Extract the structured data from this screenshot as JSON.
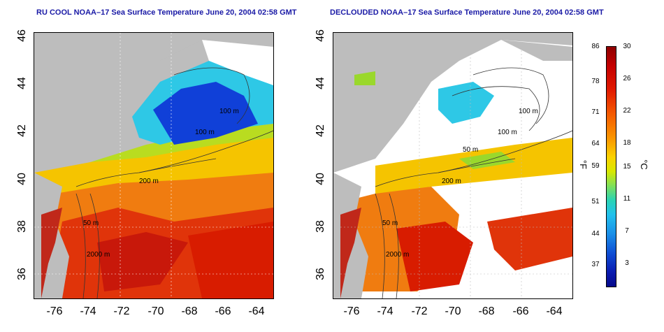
{
  "left_panel": {
    "title": "RU COOL NOAA–17 Sea Surface Temperature June 20, 2004 02:58 GMT",
    "contour_labels": [
      "100 m",
      "100 m",
      "200 m",
      "50 m",
      "2000 m"
    ]
  },
  "right_panel": {
    "title": "DECLOUDED NOAA–17 Sea Surface Temperature June 20, 2004 02:58 GMT",
    "contour_labels": [
      "100 m",
      "100 m",
      "50 m",
      "200 m",
      "50 m",
      "2000 m"
    ]
  },
  "axes": {
    "lat_ticks": [
      "46",
      "44",
      "42",
      "40",
      "38",
      "36"
    ],
    "lon_ticks": [
      "-76",
      "-74",
      "-72",
      "-70",
      "-68",
      "-66",
      "-64"
    ]
  },
  "colorbar": {
    "fahrenheit_ticks": [
      "86",
      "78",
      "71",
      "64",
      "59",
      "51",
      "44",
      "37"
    ],
    "celsius_ticks": [
      "30",
      "26",
      "22",
      "18",
      "15",
      "11",
      "7",
      "3"
    ],
    "fahrenheit_unit": "°F",
    "celsius_unit": "°C"
  },
  "colors": {
    "land": "#bdbdbd",
    "title": "#1a1aa6",
    "warm": "#d81c00",
    "cool": "#1030d0"
  }
}
